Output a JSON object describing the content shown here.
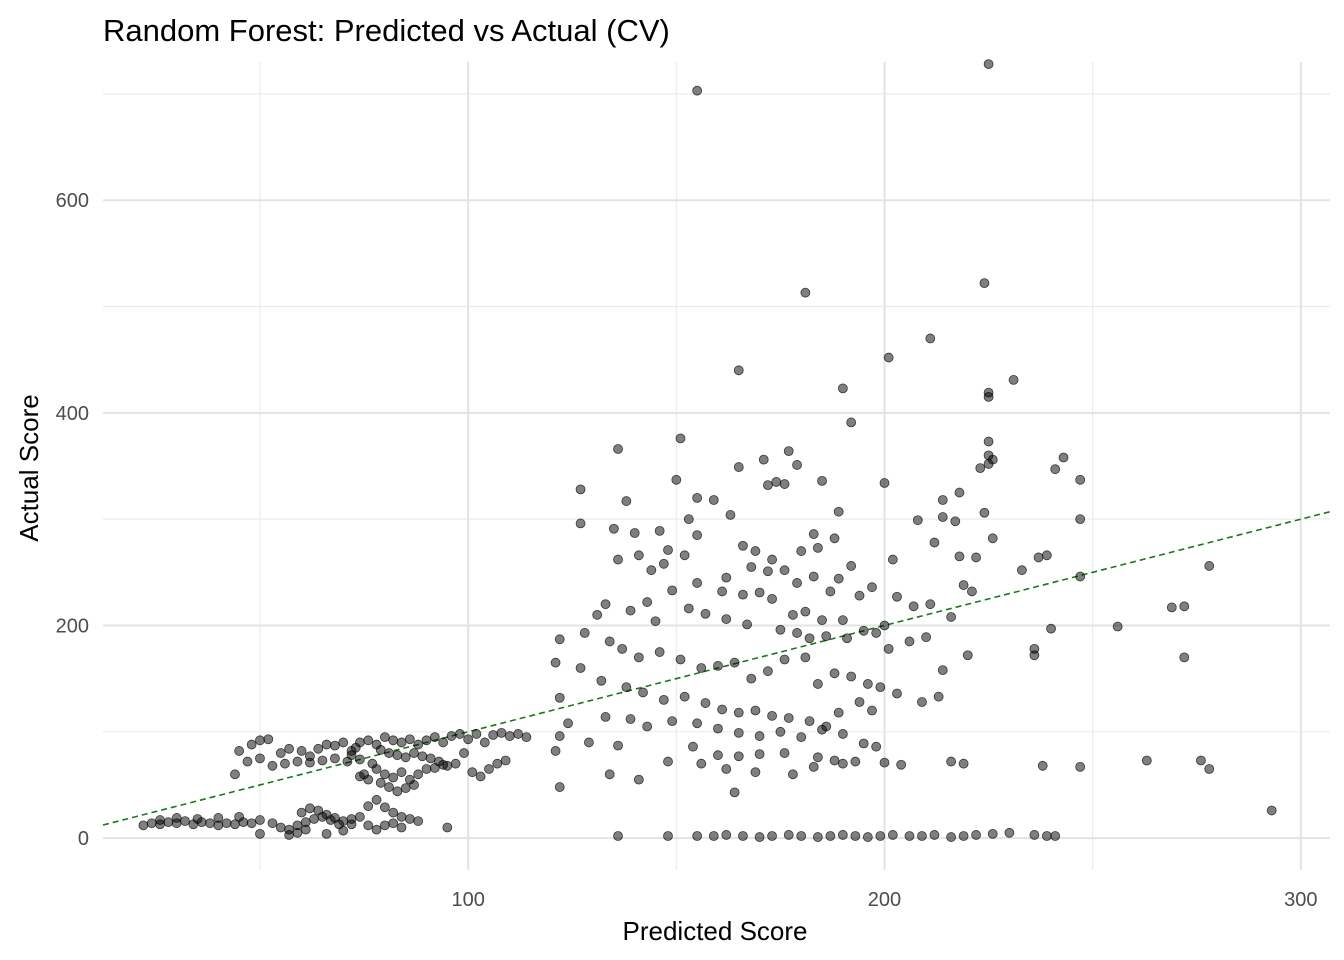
{
  "chart_data": {
    "type": "scatter",
    "title": "Random Forest: Predicted vs Actual (CV)",
    "xlabel": "Predicted Score",
    "ylabel": "Actual Score",
    "xlim": [
      12.3,
      307.0
    ],
    "ylim": [
      -30,
      730
    ],
    "x_ticks": [
      100,
      200,
      300
    ],
    "x_tick_labels": [
      "100",
      "200",
      "300"
    ],
    "x_minor_ticks": [
      50,
      150,
      250
    ],
    "y_ticks": [
      0,
      200,
      400,
      600
    ],
    "y_tick_labels": [
      "0",
      "200",
      "400",
      "600"
    ],
    "y_minor_ticks": [
      100,
      300,
      500,
      700
    ],
    "grid": true,
    "point_color": "#000000",
    "point_opacity": 0.5,
    "reference_line": {
      "type": "y=x",
      "color": "#1a7a1a",
      "style": "dashed"
    },
    "points": [
      [
        155,
        703
      ],
      [
        225,
        728
      ],
      [
        181,
        513
      ],
      [
        224,
        522
      ],
      [
        211,
        470
      ],
      [
        201,
        452
      ],
      [
        165,
        440
      ],
      [
        225,
        419
      ],
      [
        225,
        415
      ],
      [
        190,
        423
      ],
      [
        231,
        431
      ],
      [
        192,
        391
      ],
      [
        151,
        376
      ],
      [
        136,
        366
      ],
      [
        177,
        364
      ],
      [
        225,
        373
      ],
      [
        225,
        360
      ],
      [
        226,
        356
      ],
      [
        225,
        352
      ],
      [
        223,
        348
      ],
      [
        243,
        358
      ],
      [
        241,
        347
      ],
      [
        247,
        337
      ],
      [
        171,
        356
      ],
      [
        165,
        349
      ],
      [
        179,
        351
      ],
      [
        200,
        334
      ],
      [
        176,
        333
      ],
      [
        172,
        332
      ],
      [
        174,
        335
      ],
      [
        150,
        337
      ],
      [
        127,
        328
      ],
      [
        189,
        307
      ],
      [
        155,
        320
      ],
      [
        159,
        318
      ],
      [
        153,
        300
      ],
      [
        138,
        317
      ],
      [
        163,
        304
      ],
      [
        185,
        336
      ],
      [
        214,
        318
      ],
      [
        218,
        325
      ],
      [
        208,
        299
      ],
      [
        224,
        306
      ],
      [
        217,
        298
      ],
      [
        214,
        302
      ],
      [
        226,
        282
      ],
      [
        247,
        300
      ],
      [
        127,
        296
      ],
      [
        135,
        291
      ],
      [
        146,
        289
      ],
      [
        140,
        287
      ],
      [
        155,
        285
      ],
      [
        183,
        286
      ],
      [
        188,
        282
      ],
      [
        148,
        271
      ],
      [
        152,
        266
      ],
      [
        166,
        275
      ],
      [
        169,
        270
      ],
      [
        173,
        262
      ],
      [
        180,
        270
      ],
      [
        184,
        273
      ],
      [
        192,
        256
      ],
      [
        202,
        262
      ],
      [
        212,
        278
      ],
      [
        218,
        265
      ],
      [
        222,
        264
      ],
      [
        233,
        252
      ],
      [
        237,
        264
      ],
      [
        239,
        266
      ],
      [
        136,
        262
      ],
      [
        141,
        266
      ],
      [
        147,
        258
      ],
      [
        162,
        245
      ],
      [
        168,
        255
      ],
      [
        172,
        251
      ],
      [
        176,
        252
      ],
      [
        179,
        240
      ],
      [
        183,
        246
      ],
      [
        187,
        232
      ],
      [
        189,
        244
      ],
      [
        194,
        228
      ],
      [
        197,
        236
      ],
      [
        203,
        227
      ],
      [
        207,
        218
      ],
      [
        211,
        220
      ],
      [
        216,
        208
      ],
      [
        219,
        238
      ],
      [
        221,
        232
      ],
      [
        247,
        246
      ],
      [
        278,
        256
      ],
      [
        144,
        252
      ],
      [
        149,
        233
      ],
      [
        155,
        240
      ],
      [
        161,
        232
      ],
      [
        166,
        229
      ],
      [
        170,
        231
      ],
      [
        173,
        225
      ],
      [
        178,
        210
      ],
      [
        181,
        213
      ],
      [
        185,
        205
      ],
      [
        190,
        205
      ],
      [
        195,
        195
      ],
      [
        200,
        200
      ],
      [
        133,
        220
      ],
      [
        131,
        210
      ],
      [
        139,
        214
      ],
      [
        143,
        222
      ],
      [
        145,
        204
      ],
      [
        153,
        216
      ],
      [
        157,
        211
      ],
      [
        162,
        206
      ],
      [
        167,
        201
      ],
      [
        175,
        196
      ],
      [
        179,
        193
      ],
      [
        182,
        188
      ],
      [
        186,
        190
      ],
      [
        191,
        188
      ],
      [
        198,
        193
      ],
      [
        201,
        178
      ],
      [
        206,
        185
      ],
      [
        210,
        189
      ],
      [
        214,
        158
      ],
      [
        220,
        172
      ],
      [
        236,
        178
      ],
      [
        240,
        197
      ],
      [
        256,
        199
      ],
      [
        269,
        217
      ],
      [
        272,
        218
      ],
      [
        272,
        170
      ],
      [
        122,
        187
      ],
      [
        128,
        193
      ],
      [
        134,
        185
      ],
      [
        137,
        178
      ],
      [
        141,
        170
      ],
      [
        146,
        175
      ],
      [
        151,
        168
      ],
      [
        156,
        160
      ],
      [
        160,
        162
      ],
      [
        164,
        165
      ],
      [
        168,
        150
      ],
      [
        172,
        157
      ],
      [
        176,
        168
      ],
      [
        181,
        170
      ],
      [
        184,
        145
      ],
      [
        188,
        155
      ],
      [
        192,
        152
      ],
      [
        196,
        145
      ],
      [
        199,
        142
      ],
      [
        203,
        136
      ],
      [
        209,
        128
      ],
      [
        213,
        133
      ],
      [
        236,
        172
      ],
      [
        121,
        165
      ],
      [
        127,
        160
      ],
      [
        132,
        148
      ],
      [
        138,
        142
      ],
      [
        142,
        137
      ],
      [
        147,
        130
      ],
      [
        152,
        133
      ],
      [
        157,
        127
      ],
      [
        161,
        121
      ],
      [
        165,
        118
      ],
      [
        169,
        120
      ],
      [
        173,
        115
      ],
      [
        177,
        113
      ],
      [
        182,
        110
      ],
      [
        186,
        105
      ],
      [
        189,
        118
      ],
      [
        194,
        128
      ],
      [
        197,
        120
      ],
      [
        122,
        132
      ],
      [
        124,
        108
      ],
      [
        133,
        114
      ],
      [
        139,
        112
      ],
      [
        143,
        105
      ],
      [
        149,
        110
      ],
      [
        155,
        108
      ],
      [
        160,
        103
      ],
      [
        165,
        99
      ],
      [
        170,
        96
      ],
      [
        175,
        100
      ],
      [
        180,
        95
      ],
      [
        185,
        102
      ],
      [
        190,
        98
      ],
      [
        195,
        89
      ],
      [
        198,
        86
      ],
      [
        122,
        96
      ],
      [
        121,
        82
      ],
      [
        129,
        90
      ],
      [
        136,
        87
      ],
      [
        154,
        86
      ],
      [
        160,
        78
      ],
      [
        165,
        77
      ],
      [
        170,
        79
      ],
      [
        176,
        80
      ],
      [
        184,
        76
      ],
      [
        188,
        73
      ],
      [
        193,
        72
      ],
      [
        200,
        71
      ],
      [
        204,
        69
      ],
      [
        216,
        72
      ],
      [
        219,
        70
      ],
      [
        238,
        68
      ],
      [
        247,
        67
      ],
      [
        263,
        73
      ],
      [
        276,
        73
      ],
      [
        278,
        65
      ],
      [
        134,
        60
      ],
      [
        141,
        55
      ],
      [
        148,
        72
      ],
      [
        156,
        70
      ],
      [
        162,
        65
      ],
      [
        169,
        62
      ],
      [
        178,
        60
      ],
      [
        183,
        67
      ],
      [
        190,
        70
      ],
      [
        122,
        48
      ],
      [
        164,
        43
      ],
      [
        136,
        2
      ],
      [
        148,
        2
      ],
      [
        155,
        2
      ],
      [
        159,
        2
      ],
      [
        162,
        3
      ],
      [
        166,
        2
      ],
      [
        170,
        1
      ],
      [
        173,
        2
      ],
      [
        177,
        3
      ],
      [
        180,
        2
      ],
      [
        184,
        1
      ],
      [
        187,
        2
      ],
      [
        190,
        3
      ],
      [
        193,
        2
      ],
      [
        196,
        1
      ],
      [
        199,
        2
      ],
      [
        202,
        3
      ],
      [
        206,
        2
      ],
      [
        209,
        2
      ],
      [
        212,
        3
      ],
      [
        216,
        1
      ],
      [
        219,
        2
      ],
      [
        222,
        3
      ],
      [
        226,
        4
      ],
      [
        230,
        5
      ],
      [
        236,
        3
      ],
      [
        239,
        2
      ],
      [
        241,
        2
      ],
      [
        293,
        26
      ],
      [
        80,
        95
      ],
      [
        82,
        92
      ],
      [
        84,
        90
      ],
      [
        86,
        93
      ],
      [
        88,
        88
      ],
      [
        90,
        92
      ],
      [
        92,
        95
      ],
      [
        94,
        90
      ],
      [
        96,
        96
      ],
      [
        98,
        98
      ],
      [
        100,
        93
      ],
      [
        102,
        98
      ],
      [
        104,
        90
      ],
      [
        106,
        97
      ],
      [
        108,
        99
      ],
      [
        110,
        96
      ],
      [
        112,
        98
      ],
      [
        114,
        95
      ],
      [
        78,
        88
      ],
      [
        76,
        92
      ],
      [
        74,
        90
      ],
      [
        73,
        85
      ],
      [
        72,
        82
      ],
      [
        79,
        83
      ],
      [
        81,
        80
      ],
      [
        83,
        78
      ],
      [
        85,
        76
      ],
      [
        87,
        80
      ],
      [
        89,
        77
      ],
      [
        91,
        75
      ],
      [
        93,
        72
      ],
      [
        95,
        68
      ],
      [
        97,
        70
      ],
      [
        99,
        80
      ],
      [
        101,
        62
      ],
      [
        103,
        58
      ],
      [
        105,
        65
      ],
      [
        107,
        70
      ],
      [
        109,
        73
      ],
      [
        77,
        70
      ],
      [
        78,
        65
      ],
      [
        80,
        60
      ],
      [
        82,
        57
      ],
      [
        84,
        62
      ],
      [
        86,
        55
      ],
      [
        88,
        60
      ],
      [
        90,
        65
      ],
      [
        92,
        66
      ],
      [
        94,
        69
      ],
      [
        75,
        60
      ],
      [
        74,
        58
      ],
      [
        76,
        55
      ],
      [
        79,
        52
      ],
      [
        81,
        48
      ],
      [
        83,
        44
      ],
      [
        85,
        47
      ],
      [
        87,
        50
      ],
      [
        45,
        82
      ],
      [
        48,
        88
      ],
      [
        50,
        92
      ],
      [
        52,
        93
      ],
      [
        55,
        80
      ],
      [
        57,
        84
      ],
      [
        60,
        82
      ],
      [
        62,
        77
      ],
      [
        64,
        84
      ],
      [
        66,
        88
      ],
      [
        68,
        87
      ],
      [
        70,
        90
      ],
      [
        72,
        78
      ],
      [
        74,
        74
      ],
      [
        44,
        60
      ],
      [
        47,
        72
      ],
      [
        50,
        75
      ],
      [
        53,
        68
      ],
      [
        56,
        70
      ],
      [
        59,
        72
      ],
      [
        62,
        71
      ],
      [
        65,
        73
      ],
      [
        68,
        75
      ],
      [
        71,
        72
      ],
      [
        60,
        24
      ],
      [
        62,
        28
      ],
      [
        64,
        26
      ],
      [
        66,
        22
      ],
      [
        68,
        19
      ],
      [
        70,
        16
      ],
      [
        72,
        18
      ],
      [
        74,
        20
      ],
      [
        76,
        30
      ],
      [
        78,
        36
      ],
      [
        80,
        29
      ],
      [
        82,
        24
      ],
      [
        84,
        20
      ],
      [
        86,
        18
      ],
      [
        88,
        16
      ],
      [
        76,
        12
      ],
      [
        78,
        8
      ],
      [
        80,
        12
      ],
      [
        82,
        14
      ],
      [
        84,
        10
      ],
      [
        50,
        17
      ],
      [
        53,
        14
      ],
      [
        55,
        10
      ],
      [
        57,
        8
      ],
      [
        59,
        12
      ],
      [
        61,
        15
      ],
      [
        63,
        18
      ],
      [
        65,
        20
      ],
      [
        67,
        17
      ],
      [
        69,
        13
      ],
      [
        22,
        12
      ],
      [
        24,
        14
      ],
      [
        26,
        13
      ],
      [
        28,
        15
      ],
      [
        30,
        14
      ],
      [
        32,
        16
      ],
      [
        34,
        13
      ],
      [
        36,
        15
      ],
      [
        38,
        14
      ],
      [
        40,
        12
      ],
      [
        42,
        14
      ],
      [
        44,
        13
      ],
      [
        46,
        15
      ],
      [
        48,
        14
      ],
      [
        26,
        17
      ],
      [
        30,
        19
      ],
      [
        35,
        18
      ],
      [
        40,
        19
      ],
      [
        45,
        20
      ],
      [
        50,
        4
      ],
      [
        57,
        3
      ],
      [
        59,
        5
      ],
      [
        61,
        8
      ],
      [
        66,
        4
      ],
      [
        70,
        7
      ],
      [
        95,
        10
      ],
      [
        72,
        13
      ]
    ]
  }
}
